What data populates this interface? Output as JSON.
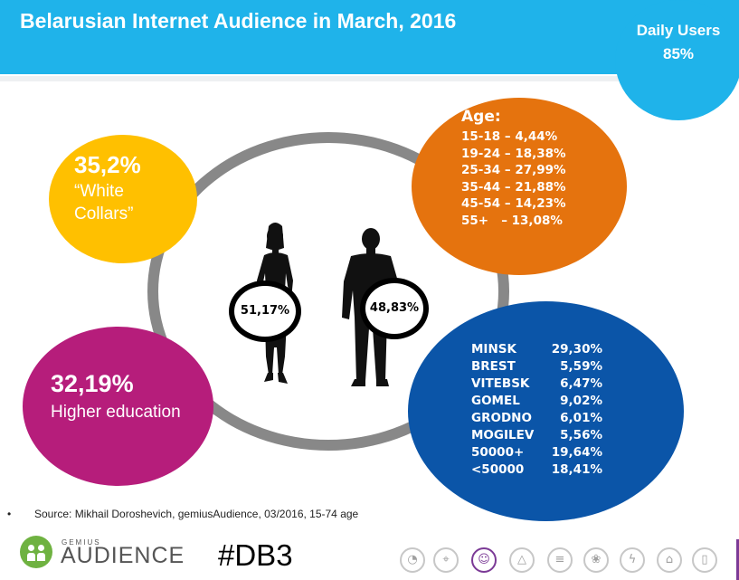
{
  "header": {
    "title": "Belarusian Internet Audience in March, 2016"
  },
  "daily_users": {
    "label": "Daily Users",
    "value": "85%"
  },
  "white_collars": {
    "value": "35,2%",
    "line1": "“White",
    "line2": "Collars”"
  },
  "higher_education": {
    "value": "32,19%",
    "label": "Higher education"
  },
  "gender": {
    "female": "51,17%",
    "male": "48,83%"
  },
  "age": {
    "heading": "Age:",
    "rows": [
      "15-18 – 4,44%",
      "19-24 – 18,38%",
      "25-34 – 27,99%",
      "35-44 – 21,88%",
      "45-54 – 14,23%",
      "55+   – 13,08%"
    ]
  },
  "regions": [
    {
      "name": "MINSK",
      "pct": "29,30%"
    },
    {
      "name": "BREST",
      "pct": "5,59%"
    },
    {
      "name": "VITEBSK",
      "pct": "6,47%"
    },
    {
      "name": "GOMEL",
      "pct": "9,02%"
    },
    {
      "name": "GRODNO",
      "pct": "6,01%"
    },
    {
      "name": "MOGILEV",
      "pct": "5,56%"
    },
    {
      "name": "50000+",
      "pct": "19,64%"
    },
    {
      "name": "<50000",
      "pct": "18,41%"
    }
  ],
  "footer": {
    "bullet": "•",
    "source": "Source: Mikhail Doroshevich, gemiusAudience,  03/2016, 15-74 age",
    "logo_small": "GEMIUS",
    "logo_big": "AUDIENCE",
    "hashtag": "#DB3"
  },
  "nav_icons": [
    {
      "name": "pie-icon",
      "glyph": "◔",
      "active": false
    },
    {
      "name": "location-pin-icon",
      "glyph": "⌖",
      "active": false
    },
    {
      "name": "users-icon",
      "glyph": "☺",
      "active": true
    },
    {
      "name": "triangle-icon",
      "glyph": "△",
      "active": false
    },
    {
      "name": "signal-icon",
      "glyph": "≡",
      "active": false
    },
    {
      "name": "flame-icon",
      "glyph": "❀",
      "active": false
    },
    {
      "name": "bolt-icon",
      "glyph": "ϟ",
      "active": false
    },
    {
      "name": "cart-icon",
      "glyph": "⌂",
      "active": false
    },
    {
      "name": "phone-icon",
      "glyph": "▯",
      "active": false
    }
  ],
  "colors": {
    "header": "#1fb3ea",
    "orange": "#e5730e",
    "blue": "#0b55a8",
    "yellow": "#ffc000",
    "magenta": "#b61d7b",
    "ring": "#888888"
  }
}
